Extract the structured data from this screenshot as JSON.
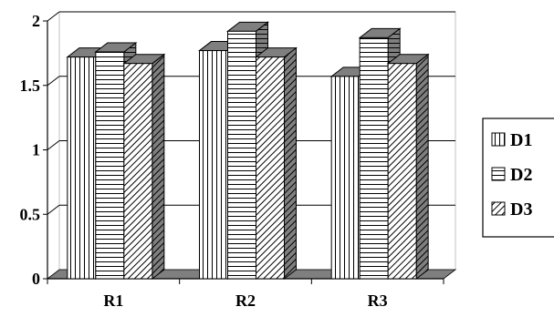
{
  "chart_data": {
    "type": "bar",
    "style": "3d-clustered-column",
    "categories": [
      "R1",
      "R2",
      "R3"
    ],
    "series": [
      {
        "name": "D1",
        "pattern": "vertical-lines",
        "values": [
          1.72,
          1.77,
          1.57
        ]
      },
      {
        "name": "D2",
        "pattern": "horizontal-lines",
        "values": [
          1.76,
          1.92,
          1.87
        ]
      },
      {
        "name": "D3",
        "pattern": "diagonal-lines",
        "values": [
          1.67,
          1.72,
          1.67
        ]
      }
    ],
    "ylim": [
      0,
      2
    ],
    "yticks": [
      "0",
      "0.5",
      "1",
      "1.5",
      "2"
    ],
    "grid": true,
    "legend_position": "right",
    "colors": {
      "bar_fill": "#ffffff",
      "stroke": "#000000",
      "side_face": "#7f7f7f",
      "wall": "#c0c0c0"
    }
  }
}
